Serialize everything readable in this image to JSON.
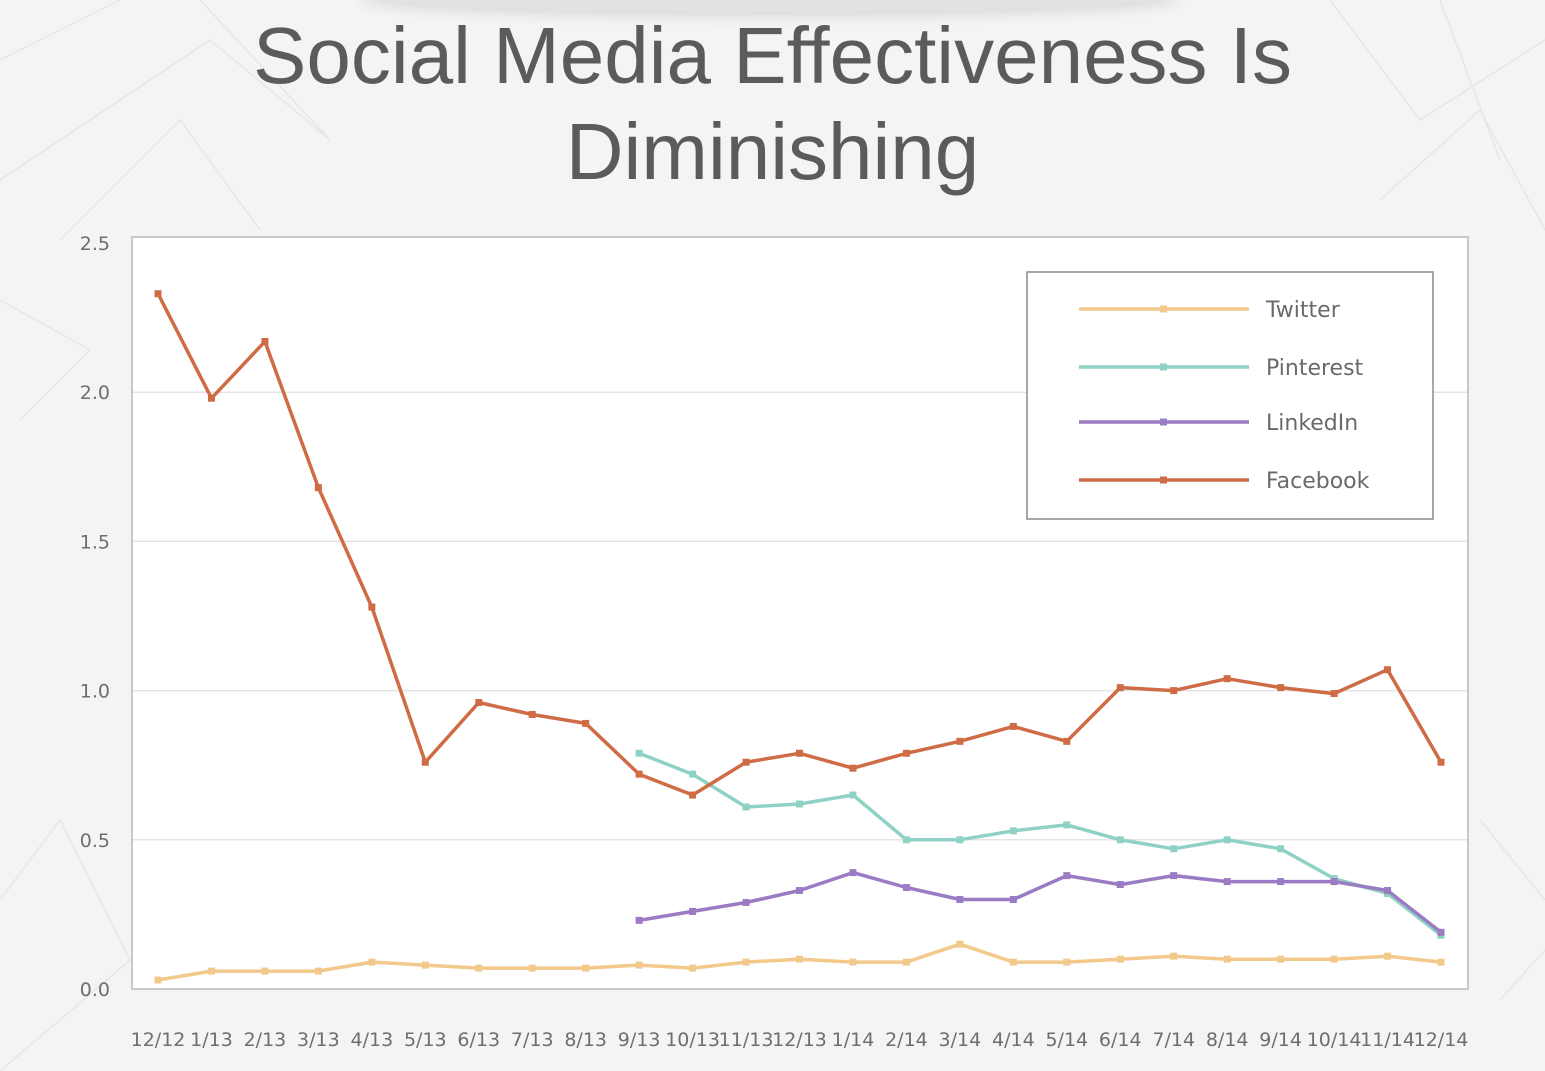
{
  "title": "Social Media Effectiveness Is Diminishing",
  "chart_data": {
    "type": "line",
    "title": "Social Media Effectiveness Is Diminishing",
    "xlabel": "",
    "ylabel": "",
    "ylim": [
      0,
      2.5
    ],
    "yticks": [
      "0.0",
      "0.5",
      "1.0",
      "1.5",
      "2.0",
      "2.5"
    ],
    "grid": true,
    "legend_position": "top-right",
    "categories": [
      "12/12",
      "1/13",
      "2/13",
      "3/13",
      "4/13",
      "5/13",
      "6/13",
      "7/13",
      "8/13",
      "9/13",
      "10/13",
      "11/13",
      "12/13",
      "1/14",
      "2/14",
      "3/14",
      "4/14",
      "5/14",
      "6/14",
      "7/14",
      "8/14",
      "9/14",
      "10/14",
      "11/14",
      "12/14"
    ],
    "series": [
      {
        "name": "Twitter",
        "color": "#f2c98a",
        "values": [
          0.03,
          0.06,
          0.06,
          0.06,
          0.09,
          0.08,
          0.07,
          0.07,
          0.07,
          0.08,
          0.07,
          0.09,
          0.1,
          0.09,
          0.09,
          0.15,
          0.09,
          0.09,
          0.1,
          0.11,
          0.1,
          0.1,
          0.1,
          0.11,
          0.09
        ]
      },
      {
        "name": "Pinterest",
        "color": "#8fd2c5",
        "values": [
          null,
          null,
          null,
          null,
          null,
          null,
          null,
          null,
          null,
          0.79,
          0.72,
          0.61,
          0.62,
          0.65,
          0.5,
          0.5,
          0.53,
          0.55,
          0.5,
          0.47,
          0.5,
          0.47,
          0.37,
          0.32,
          0.18
        ]
      },
      {
        "name": "LinkedIn",
        "color": "#9a7bc4",
        "values": [
          null,
          null,
          null,
          null,
          null,
          null,
          null,
          null,
          null,
          0.23,
          0.26,
          0.29,
          0.33,
          0.39,
          0.34,
          0.3,
          0.3,
          0.38,
          0.35,
          0.38,
          0.36,
          0.36,
          0.36,
          0.33,
          0.19
        ]
      },
      {
        "name": "Facebook",
        "color": "#cf6b45",
        "values": [
          2.33,
          1.98,
          2.17,
          1.68,
          1.28,
          0.76,
          0.96,
          0.92,
          0.89,
          0.72,
          0.65,
          0.76,
          0.79,
          0.74,
          0.79,
          0.83,
          0.88,
          0.83,
          1.01,
          1.0,
          1.04,
          1.01,
          0.99,
          1.07,
          0.76
        ]
      }
    ]
  }
}
